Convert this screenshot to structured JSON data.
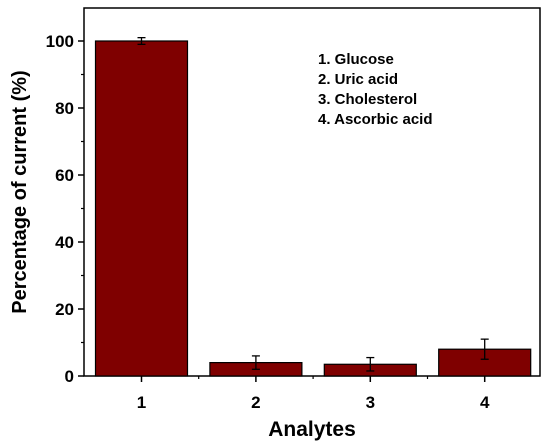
{
  "chart_data": {
    "type": "bar",
    "xlabel": "Analytes",
    "ylabel": "Percentage of current (%)",
    "categories": [
      "1",
      "2",
      "3",
      "4"
    ],
    "values": [
      100,
      4,
      3.5,
      8
    ],
    "errors": [
      1,
      2,
      2,
      3
    ],
    "ylim": [
      0,
      110
    ],
    "yticks": [
      0,
      20,
      40,
      60,
      80,
      100
    ],
    "bar_color": "#7f0000",
    "legend": {
      "position": "top-right",
      "items": [
        "1. Glucose",
        "2. Uric acid",
        "3. Cholesterol",
        "4. Ascorbic acid"
      ]
    },
    "grid": false
  }
}
